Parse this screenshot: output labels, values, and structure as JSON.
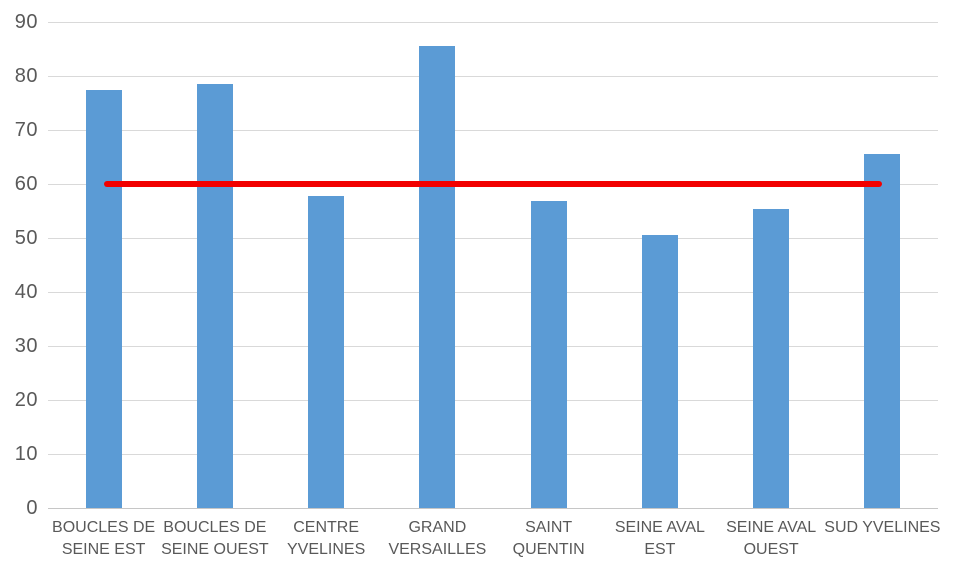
{
  "chart_data": {
    "type": "bar",
    "title": "",
    "xlabel": "",
    "ylabel": "",
    "categories": [
      "BOUCLES DE SEINE EST",
      "BOUCLES DE SEINE OUEST",
      "CENTRE YVELINES",
      "GRAND VERSAILLES",
      "SAINT QUENTIN",
      "SEINE AVAL EST",
      "SEINE AVAL OUEST",
      "SUD YVELINES"
    ],
    "category_lines": [
      [
        "BOUCLES DE",
        "SEINE EST"
      ],
      [
        "BOUCLES DE",
        "SEINE OUEST"
      ],
      [
        "CENTRE",
        "YVELINES"
      ],
      [
        "GRAND",
        "VERSAILLES"
      ],
      [
        "SAINT",
        "QUENTIN"
      ],
      [
        "SEINE AVAL",
        "EST"
      ],
      [
        "SEINE AVAL",
        "OUEST"
      ],
      [
        "SUD YVELINES"
      ]
    ],
    "values": [
      77.5,
      78.5,
      57.8,
      85.5,
      56.8,
      50.6,
      55.3,
      65.6
    ],
    "target_line": {
      "value": 60
    },
    "ylim": [
      0,
      90
    ],
    "ytick_step": 10,
    "ytick_labels": [
      "0",
      "10",
      "20",
      "30",
      "40",
      "50",
      "60",
      "70",
      "80",
      "90"
    ],
    "grid": true,
    "legend": "none"
  },
  "colors": {
    "bar": "#5b9bd5",
    "target_line": "#f20000",
    "gridline": "#d9d9d9",
    "axis_line": "#c6c6c6",
    "text": "#595959",
    "background": "#ffffff"
  }
}
